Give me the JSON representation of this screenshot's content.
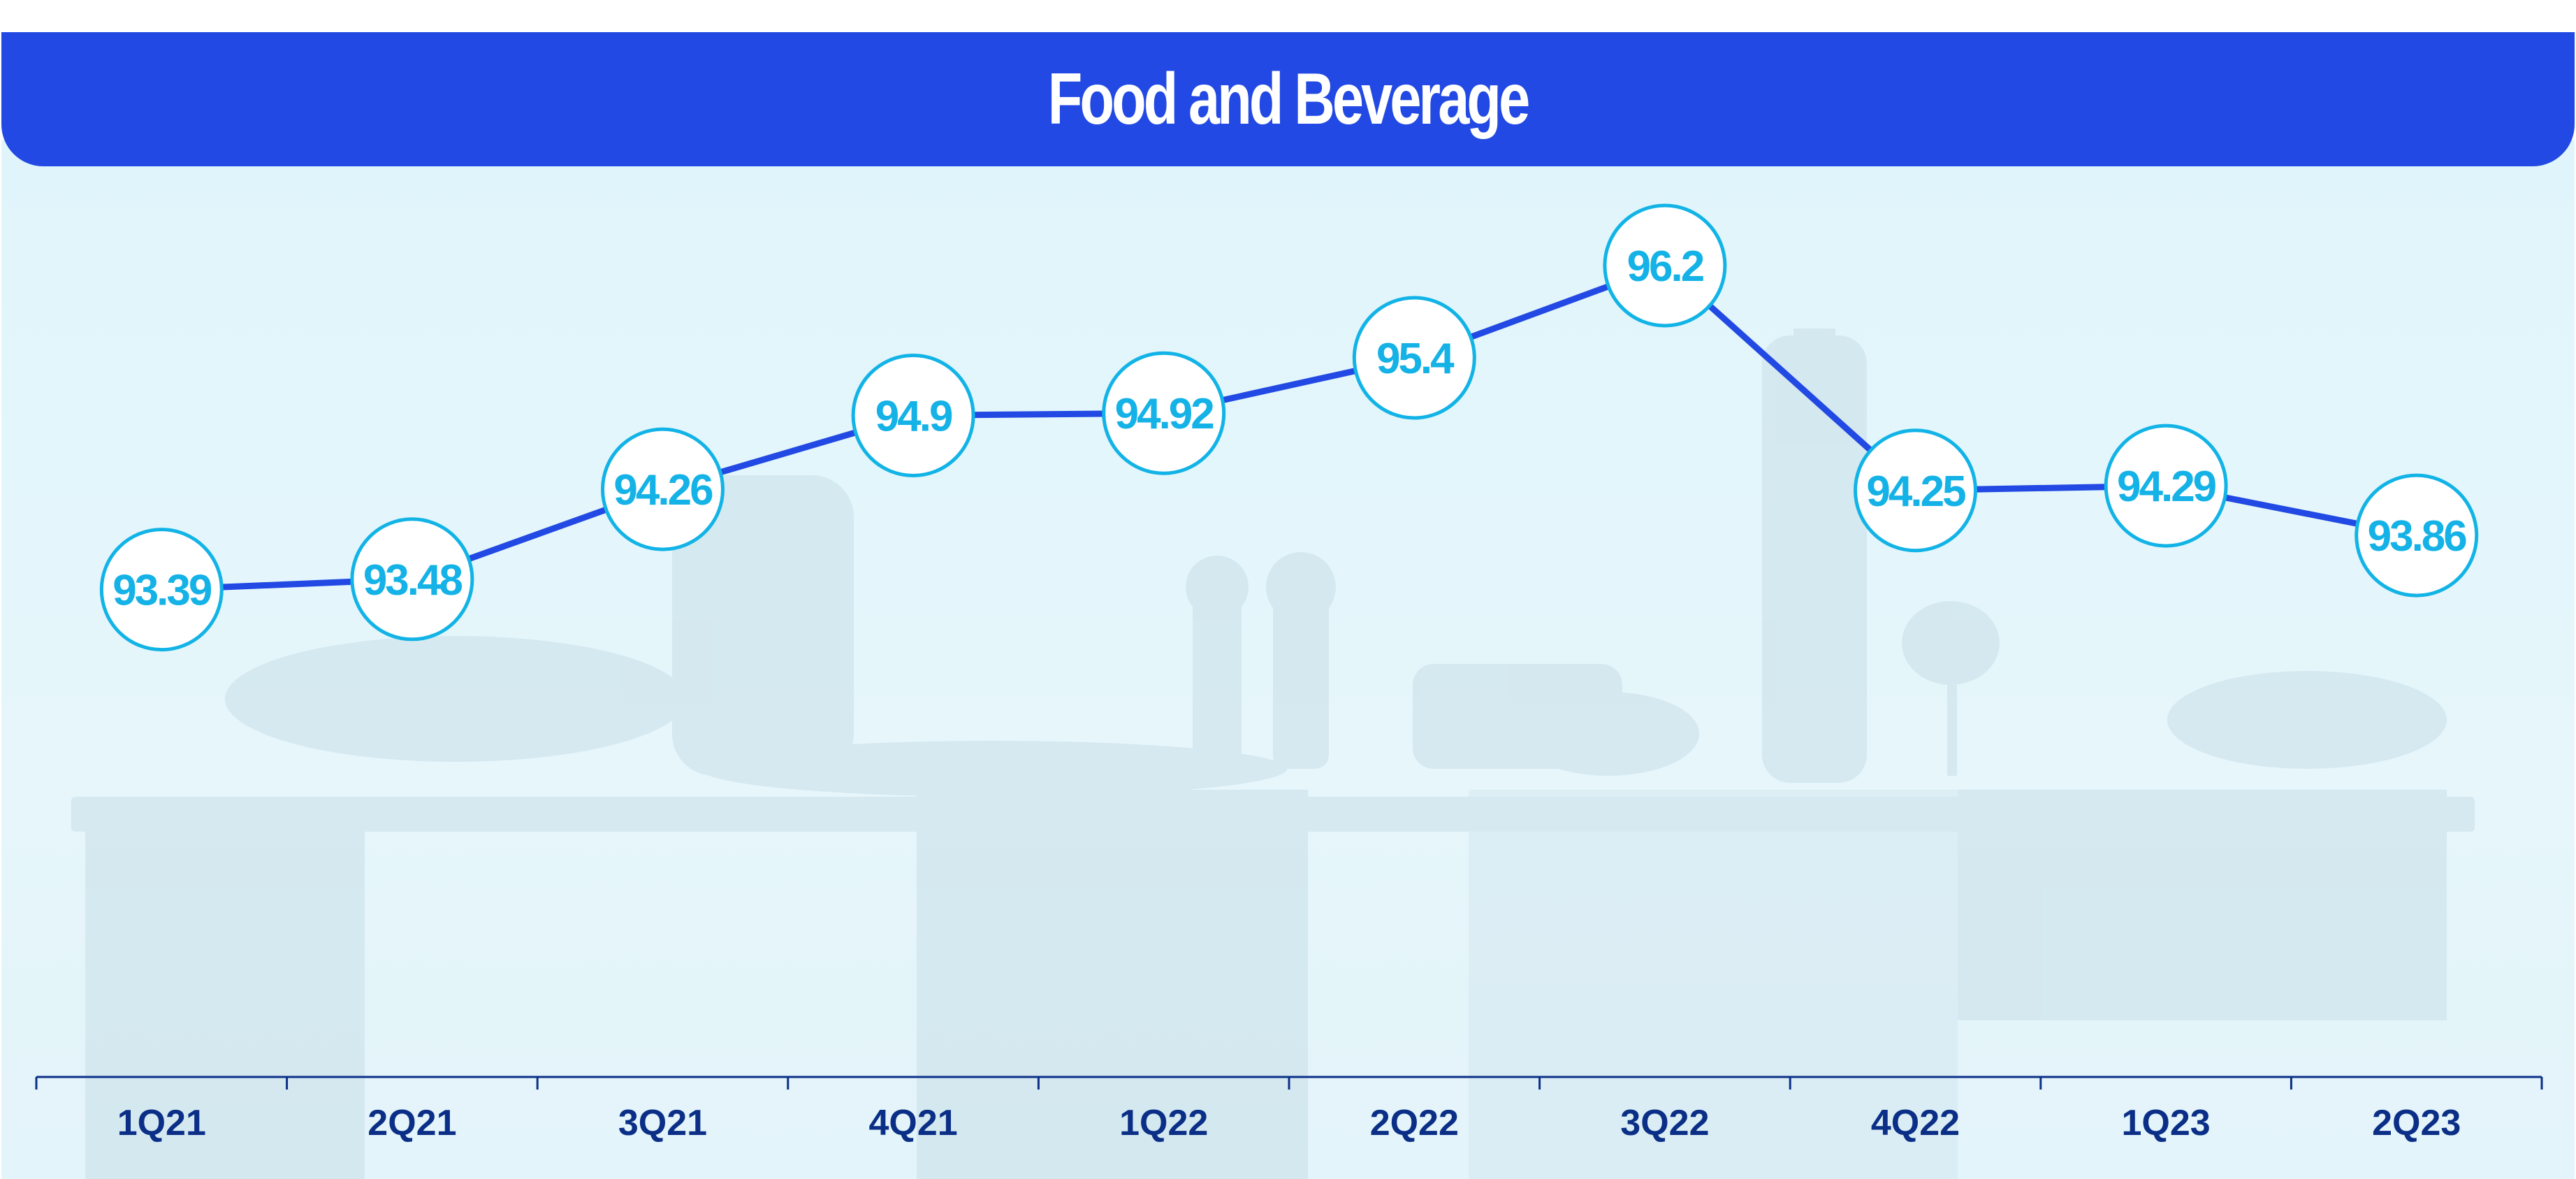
{
  "header": {
    "title": "Food and Beverage"
  },
  "colors": {
    "header_bg": "#2249e3",
    "line": "#2249e3",
    "marker_stroke": "#12b3e6",
    "value_text": "#14b2e6",
    "tick_label": "#0b2f87",
    "axis": "#0b2f87"
  },
  "chart_data": {
    "type": "line",
    "title": "Food and Beverage",
    "xlabel": "",
    "ylabel": "",
    "categories": [
      "1Q21",
      "2Q21",
      "3Q21",
      "4Q21",
      "1Q22",
      "2Q22",
      "3Q22",
      "4Q22",
      "1Q23",
      "2Q23"
    ],
    "series": [
      {
        "name": "Food and Beverage",
        "values": [
          93.39,
          93.48,
          94.26,
          94.9,
          94.92,
          95.4,
          96.2,
          94.25,
          94.29,
          93.86
        ]
      }
    ],
    "ylim": [
      92.0,
      97.0
    ],
    "grid": false,
    "legend": "none",
    "data_labels": [
      "93.39",
      "93.48",
      "94.26",
      "94.9",
      "94.92",
      "95.4",
      "96.2",
      "94.25",
      "94.29",
      "93.86"
    ]
  }
}
